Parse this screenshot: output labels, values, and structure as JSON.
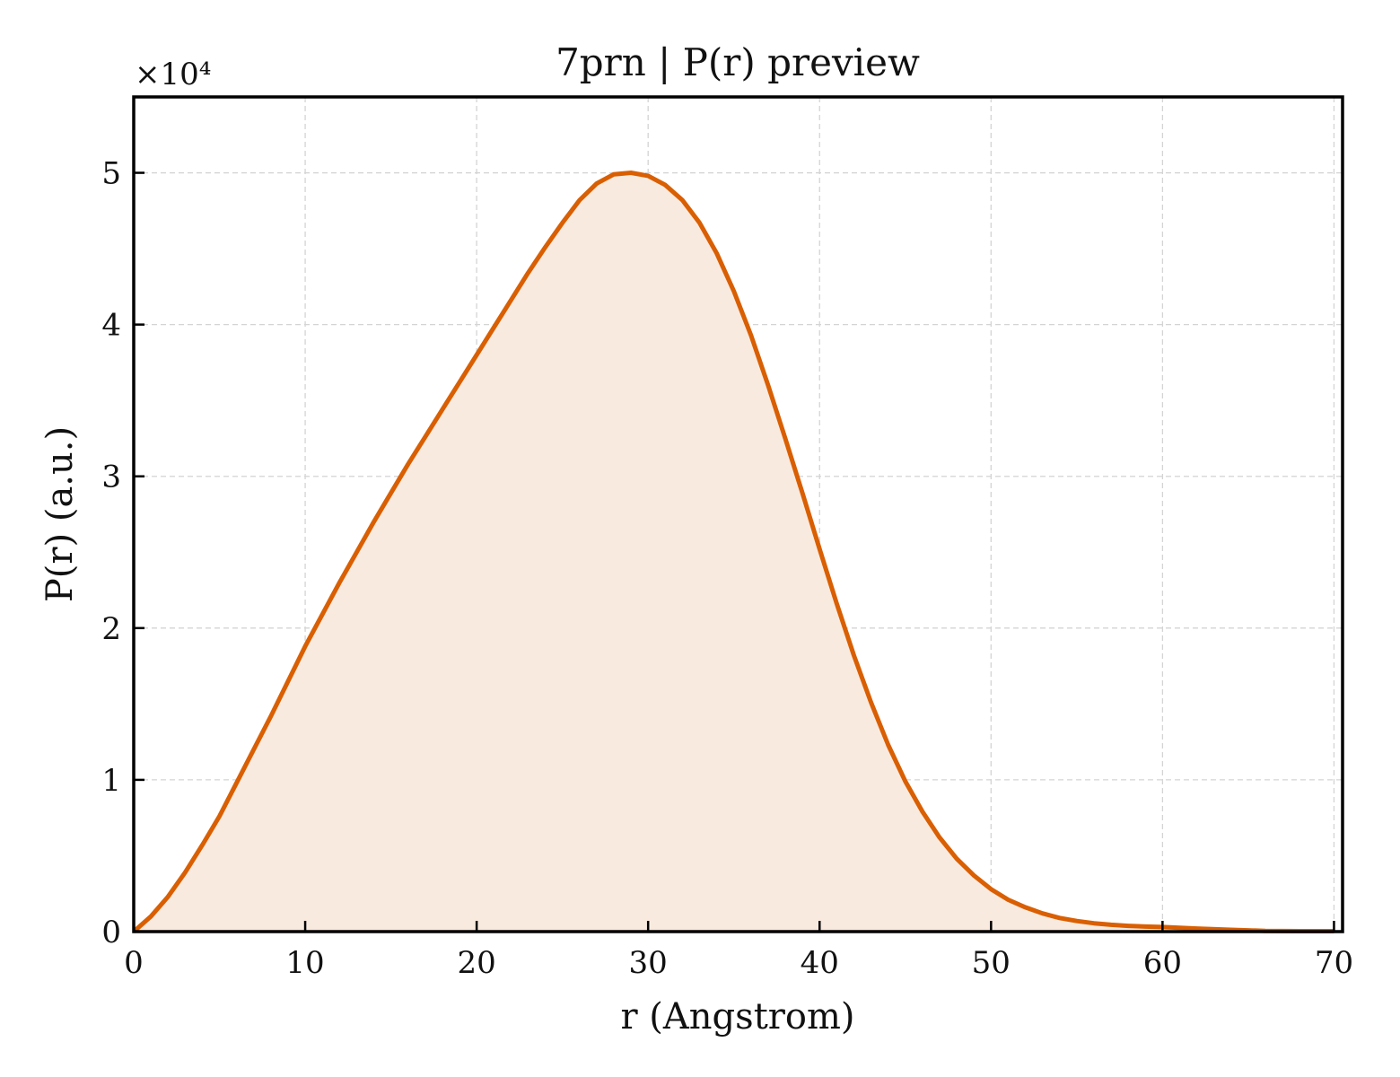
{
  "chart_data": {
    "type": "area",
    "title": "7prn | P(r) preview",
    "xlabel": "r (Angstrom)",
    "ylabel": "P(r) (a.u.)",
    "y_offset_label": "×10⁴",
    "xlim": [
      0,
      70.5
    ],
    "ylim": [
      0,
      5.5
    ],
    "y_scale": 10000,
    "xticks": [
      0,
      10,
      20,
      30,
      40,
      50,
      60,
      70
    ],
    "yticks": [
      0,
      1,
      2,
      3,
      4,
      5
    ],
    "grid": true,
    "line_color": "#d95f02",
    "fill_color": "#f9eae0",
    "series": [
      {
        "x": [
          0,
          1,
          2,
          3,
          4,
          5,
          6,
          7,
          8,
          9,
          10,
          11,
          12,
          13,
          14,
          15,
          16,
          17,
          18,
          19,
          20,
          21,
          22,
          23,
          24,
          25,
          26,
          27,
          28,
          29,
          30,
          31,
          32,
          33,
          34,
          35,
          36,
          37,
          38,
          39,
          40,
          41,
          42,
          43,
          44,
          45,
          46,
          47,
          48,
          49,
          50,
          51,
          52,
          53,
          54,
          55,
          56,
          57,
          58,
          59,
          60,
          62,
          64,
          66,
          68,
          70
        ],
        "y": [
          0,
          0.1,
          0.23,
          0.39,
          0.57,
          0.76,
          0.98,
          1.2,
          1.42,
          1.65,
          1.88,
          2.09,
          2.3,
          2.5,
          2.7,
          2.89,
          3.08,
          3.26,
          3.44,
          3.62,
          3.8,
          3.98,
          4.16,
          4.34,
          4.51,
          4.67,
          4.82,
          4.93,
          4.99,
          5.0,
          4.98,
          4.92,
          4.82,
          4.67,
          4.47,
          4.22,
          3.93,
          3.6,
          3.25,
          2.89,
          2.52,
          2.16,
          1.82,
          1.51,
          1.23,
          0.99,
          0.79,
          0.62,
          0.48,
          0.37,
          0.28,
          0.21,
          0.16,
          0.12,
          0.09,
          0.07,
          0.055,
          0.045,
          0.038,
          0.033,
          0.03,
          0.02,
          0.012,
          0.005,
          0.003,
          0.003
        ]
      }
    ]
  }
}
